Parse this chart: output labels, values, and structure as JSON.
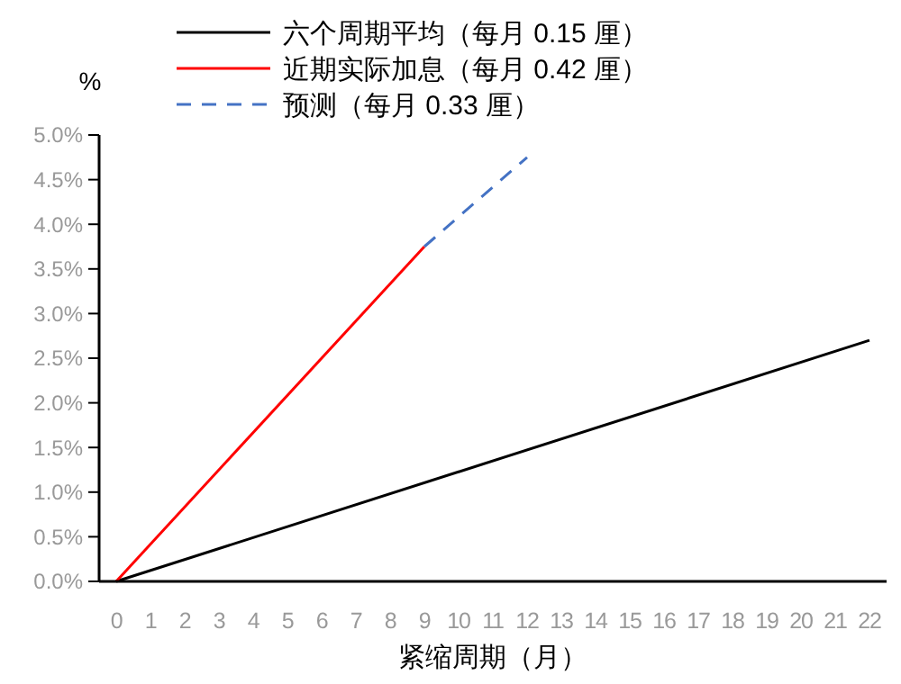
{
  "chart_data": {
    "type": "line",
    "ylabel": "%",
    "xlabel": "紧缩周期（月）",
    "xlim": [
      -0.5,
      22.5
    ],
    "xticks": [
      0,
      1,
      2,
      3,
      4,
      5,
      6,
      7,
      8,
      9,
      10,
      11,
      12,
      13,
      14,
      15,
      16,
      17,
      18,
      19,
      20,
      21,
      22
    ],
    "ylim": [
      0,
      5
    ],
    "yticks": [
      {
        "value": 0,
        "label": "0.0%"
      },
      {
        "value": 0.5,
        "label": "0.5%"
      },
      {
        "value": 1,
        "label": "1.0%"
      },
      {
        "value": 1.5,
        "label": "1.5%"
      },
      {
        "value": 2,
        "label": "2.0%"
      },
      {
        "value": 2.5,
        "label": "2.5%"
      },
      {
        "value": 3,
        "label": "3.0%"
      },
      {
        "value": 3.5,
        "label": "3.5%"
      },
      {
        "value": 4,
        "label": "4.0%"
      },
      {
        "value": 4.5,
        "label": "4.5%"
      },
      {
        "value": 5,
        "label": "5.0%"
      }
    ],
    "grid": false,
    "legend": "top",
    "marker": "none",
    "series": [
      {
        "name": "六个周期平均（每月 0.15 厘）",
        "color": "#000000",
        "x": [
          0,
          22
        ],
        "values": [
          0,
          2.7
        ],
        "line_style": "solid"
      },
      {
        "name": "近期实际加息（每月 0.42 厘）",
        "color": "#ff0000",
        "x": [
          0,
          9
        ],
        "values": [
          0,
          3.75
        ],
        "line_style": "solid"
      },
      {
        "name": "预测（每月 0.33 厘）",
        "color": "#4472c4",
        "x": [
          9,
          12
        ],
        "values": [
          3.75,
          4.75
        ],
        "line_style": "dashed"
      }
    ]
  }
}
